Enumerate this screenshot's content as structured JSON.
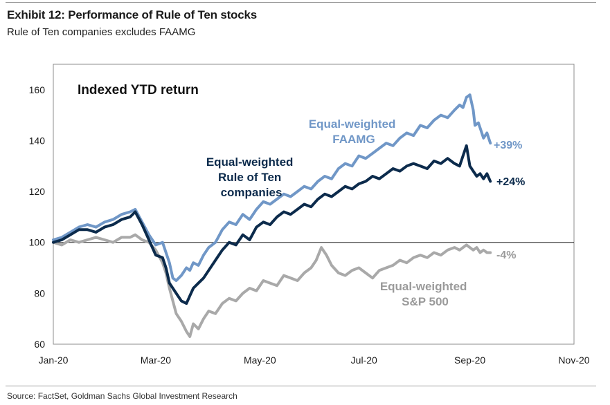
{
  "header": {
    "title": "Exhibit 12: Performance of Rule of Ten stocks",
    "subtitle": "Rule of Ten companies excludes FAAMG"
  },
  "footer": {
    "source": "Source: FactSet, Goldman Sachs Global Investment Research"
  },
  "chart_data": {
    "type": "line",
    "title": "Indexed YTD return",
    "xlabel": "",
    "ylabel": "",
    "x_range_days": [
      0,
      305
    ],
    "ylim": [
      60,
      170
    ],
    "yticks": [
      60,
      80,
      100,
      120,
      140,
      160
    ],
    "ytick_labels": [
      "60",
      "80",
      "100",
      "120",
      "140",
      "160"
    ],
    "xticks_day": [
      0,
      60,
      121,
      182,
      244,
      305
    ],
    "xtick_labels": [
      "Jan-20",
      "Mar-20",
      "May-20",
      "Jul-20",
      "Sep-20",
      "Nov-20"
    ],
    "reference_line": 100,
    "series": [
      {
        "name": "Equal-weighted FAAMG",
        "label_lines": [
          "Equal-weighted",
          "FAAMG"
        ],
        "end_label": "+39%",
        "color": "#7097c7",
        "x": [
          0,
          5,
          10,
          15,
          20,
          25,
          30,
          35,
          40,
          45,
          48,
          52,
          56,
          60,
          64,
          68,
          70,
          72,
          75,
          78,
          80,
          82,
          85,
          88,
          91,
          95,
          99,
          103,
          107,
          111,
          115,
          119,
          123,
          127,
          131,
          135,
          139,
          143,
          147,
          151,
          155,
          159,
          163,
          167,
          171,
          175,
          179,
          183,
          187,
          191,
          195,
          199,
          203,
          207,
          211,
          215,
          219,
          223,
          227,
          231,
          235,
          238,
          240,
          242,
          244,
          246,
          247,
          249,
          250,
          252,
          254,
          256
        ],
        "values": [
          101,
          102,
          104,
          106,
          107,
          106,
          108,
          109,
          111,
          112,
          113,
          108,
          103,
          99,
          100,
          92,
          86,
          85,
          87,
          90,
          89,
          92,
          91,
          95,
          98,
          100,
          105,
          108,
          107,
          111,
          109,
          113,
          116,
          115,
          117,
          119,
          118,
          120,
          122,
          121,
          124,
          126,
          125,
          129,
          131,
          130,
          134,
          133,
          135,
          137,
          139,
          138,
          141,
          143,
          142,
          146,
          145,
          148,
          150,
          149,
          152,
          154,
          153,
          157,
          158,
          152,
          146,
          147,
          145,
          141,
          143,
          139
        ]
      },
      {
        "name": "Equal-weighted Rule of Ten companies",
        "label_lines": [
          "Equal-weighted",
          "Rule of Ten",
          "companies"
        ],
        "end_label": "+24%",
        "color": "#0c2b4c",
        "x": [
          0,
          5,
          10,
          15,
          20,
          25,
          30,
          35,
          40,
          45,
          48,
          52,
          56,
          60,
          64,
          66,
          68,
          70,
          72,
          75,
          78,
          80,
          82,
          85,
          88,
          91,
          95,
          99,
          103,
          107,
          111,
          115,
          119,
          123,
          127,
          131,
          135,
          139,
          143,
          147,
          151,
          155,
          159,
          163,
          167,
          171,
          175,
          179,
          183,
          187,
          191,
          195,
          199,
          203,
          207,
          211,
          215,
          219,
          223,
          227,
          231,
          235,
          238,
          240,
          242,
          244,
          246,
          248,
          250,
          252,
          254,
          256
        ],
        "values": [
          100,
          101,
          103,
          105,
          105,
          104,
          106,
          107,
          109,
          110,
          112,
          107,
          101,
          95,
          94,
          90,
          84,
          82,
          80,
          77,
          76,
          79,
          82,
          84,
          86,
          89,
          93,
          97,
          100,
          99,
          103,
          101,
          106,
          108,
          107,
          110,
          112,
          111,
          113,
          115,
          114,
          117,
          119,
          118,
          120,
          122,
          121,
          123,
          124,
          126,
          125,
          127,
          129,
          128,
          130,
          131,
          130,
          129,
          132,
          131,
          133,
          131,
          130,
          134,
          138,
          130,
          128,
          126,
          127,
          125,
          127,
          124
        ]
      },
      {
        "name": "Equal-weighted S&P 500",
        "label_lines": [
          "Equal-weighted",
          "S&P 500"
        ],
        "end_label": "-4%",
        "color": "#a9a9a9",
        "x": [
          0,
          5,
          10,
          15,
          20,
          25,
          30,
          35,
          40,
          45,
          48,
          52,
          56,
          60,
          64,
          66,
          68,
          70,
          72,
          75,
          78,
          80,
          82,
          85,
          88,
          91,
          95,
          99,
          103,
          107,
          111,
          115,
          119,
          123,
          127,
          131,
          135,
          139,
          143,
          147,
          151,
          154,
          157,
          160,
          163,
          167,
          171,
          175,
          179,
          183,
          187,
          191,
          195,
          199,
          203,
          207,
          211,
          215,
          219,
          223,
          227,
          231,
          235,
          238,
          240,
          242,
          244,
          246,
          248,
          250,
          252,
          254,
          256
        ],
        "values": [
          100,
          99,
          101,
          100,
          101,
          102,
          101,
          100,
          102,
          102,
          103,
          101,
          100,
          97,
          92,
          88,
          82,
          77,
          72,
          69,
          65,
          63,
          68,
          66,
          70,
          73,
          72,
          76,
          78,
          77,
          80,
          82,
          81,
          85,
          84,
          83,
          87,
          86,
          85,
          88,
          90,
          93,
          98,
          95,
          91,
          88,
          87,
          89,
          90,
          88,
          86,
          89,
          90,
          91,
          93,
          92,
          94,
          95,
          94,
          96,
          95,
          97,
          98,
          97,
          98,
          99,
          98,
          97,
          98,
          96,
          97,
          96,
          96
        ]
      }
    ]
  }
}
